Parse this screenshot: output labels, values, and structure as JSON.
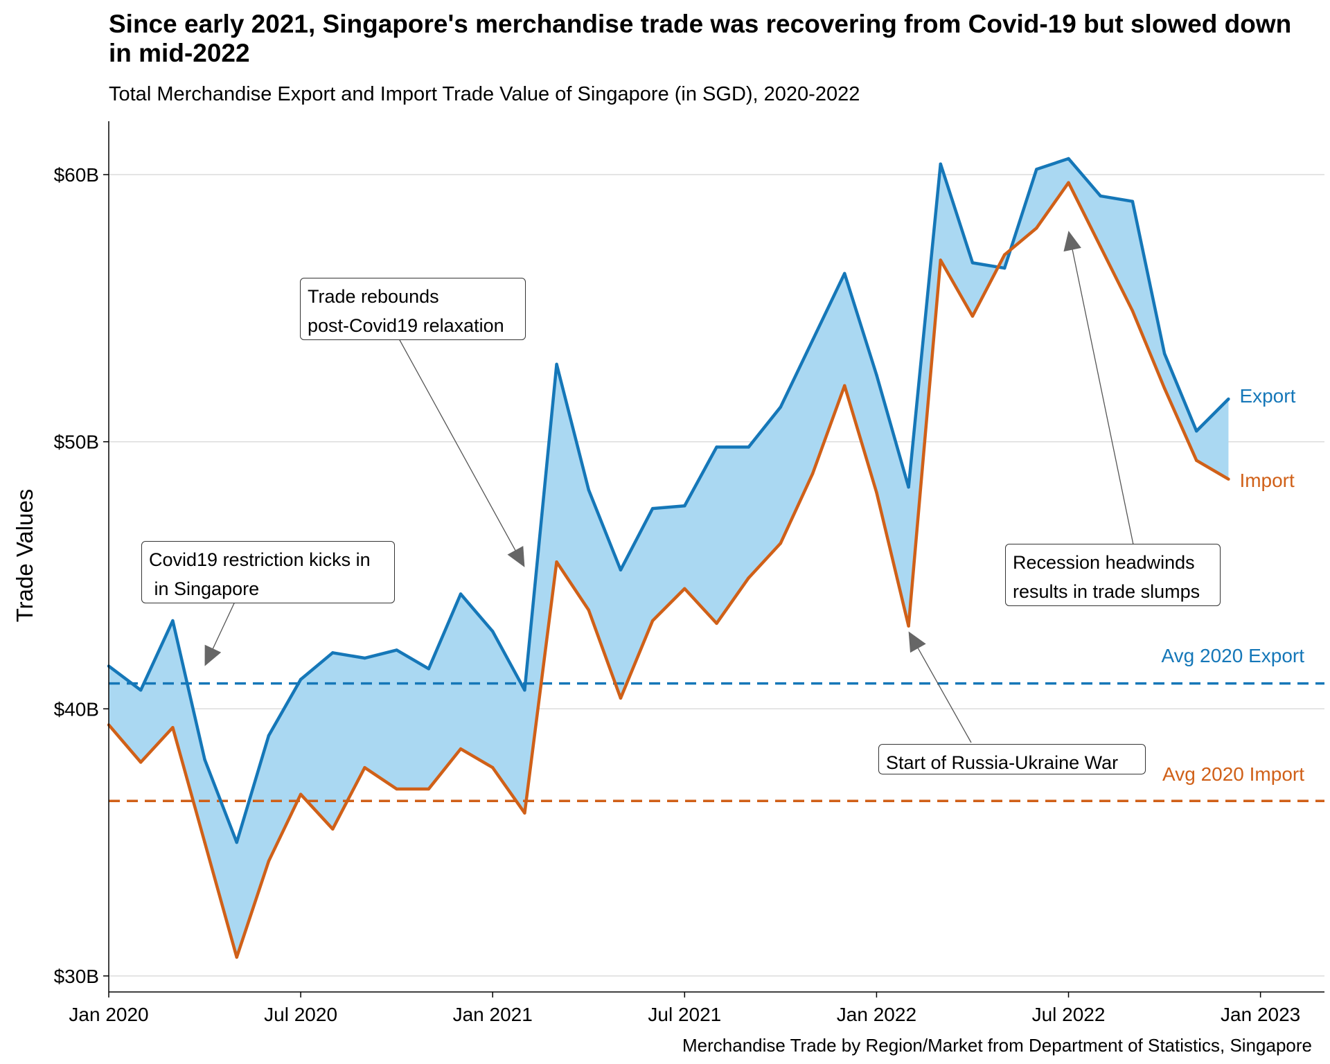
{
  "chart_data": {
    "type": "area",
    "title": "Since early 2021, Singapore's merchandise trade was recovering from Covid-19 but slowed down in mid-2022",
    "subtitle": "Total Merchandise Export and Import Trade Value of Singapore (in SGD), 2020-2022",
    "ylabel": "Trade Values",
    "xlabel": "",
    "caption": "Merchandise Trade by Region/Market from Department of Statistics, Singapore",
    "x": [
      "2020-01",
      "2020-02",
      "2020-03",
      "2020-04",
      "2020-05",
      "2020-06",
      "2020-07",
      "2020-08",
      "2020-09",
      "2020-10",
      "2020-11",
      "2020-12",
      "2021-01",
      "2021-02",
      "2021-03",
      "2021-04",
      "2021-05",
      "2021-06",
      "2021-07",
      "2021-08",
      "2021-09",
      "2021-10",
      "2021-11",
      "2021-12",
      "2022-01",
      "2022-02",
      "2022-03",
      "2022-04",
      "2022-05",
      "2022-06",
      "2022-07",
      "2022-08",
      "2022-09",
      "2022-10",
      "2022-11",
      "2022-12"
    ],
    "series": [
      {
        "name": "Export",
        "color": "#1577b8",
        "values": [
          41.6,
          40.7,
          43.3,
          38.1,
          35.0,
          39.0,
          41.1,
          42.1,
          41.9,
          42.2,
          41.5,
          44.3,
          42.9,
          40.7,
          52.9,
          48.2,
          45.2,
          47.5,
          47.6,
          49.8,
          49.8,
          51.3,
          53.8,
          56.3,
          52.5,
          48.3,
          60.4,
          56.7,
          56.5,
          60.2,
          60.6,
          59.2,
          59.0,
          53.3,
          50.4,
          51.6
        ]
      },
      {
        "name": "Import",
        "color": "#d06018",
        "values": [
          39.4,
          38.0,
          39.3,
          35.0,
          30.7,
          34.3,
          36.8,
          35.5,
          37.8,
          37.0,
          37.0,
          38.5,
          37.8,
          36.1,
          45.5,
          43.7,
          40.4,
          43.3,
          44.5,
          43.2,
          44.9,
          46.2,
          48.8,
          52.1,
          48.1,
          43.1,
          56.8,
          54.7,
          57.0,
          58.0,
          59.7,
          57.3,
          54.9,
          52.0,
          49.3,
          48.6
        ]
      }
    ],
    "fill_color": "#aad8f2",
    "reference_lines": [
      {
        "label": "Avg 2020 Export",
        "value": 40.95,
        "color": "#1577b8"
      },
      {
        "label": "Avg 2020 Import",
        "value": 36.55,
        "color": "#d06018"
      }
    ],
    "ylim": [
      29.4,
      62.0
    ],
    "yticks": [
      30,
      40,
      50,
      60
    ],
    "ytick_labels": [
      "$30B",
      "$40B",
      "$50B",
      "$60B"
    ],
    "xticks": [
      "2020-01",
      "2020-07",
      "2021-01",
      "2021-07",
      "2022-01",
      "2022-07",
      "2023-01"
    ],
    "xtick_labels": [
      "Jan 2020",
      "Jul 2020",
      "Jan 2021",
      "Jul 2021",
      "Jan 2022",
      "Jul 2022",
      "Jan 2023"
    ],
    "xlim": [
      "2020-01",
      "2023-03"
    ],
    "grid": "horizontal-major",
    "legend": "none",
    "annotations": [
      {
        "text": "Covid19 restriction kicks in\n in Singapore",
        "point": {
          "x": "2020-04",
          "y": 41.6
        }
      },
      {
        "text": "Trade rebounds\npost-Covid19 relaxation",
        "point": {
          "x": "2021-02",
          "y": 45.3
        }
      },
      {
        "text": "Start of Russia-Ukraine War",
        "point": {
          "x": "2022-02",
          "y": 42.9
        }
      },
      {
        "text": "Recession headwinds\nresults in trade slumps",
        "point": {
          "x": "2022-07",
          "y": 57.9
        }
      }
    ]
  }
}
